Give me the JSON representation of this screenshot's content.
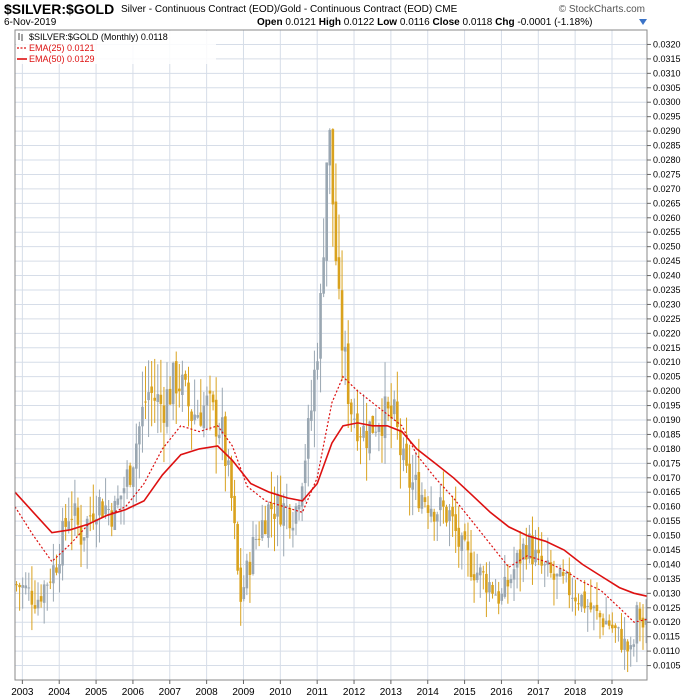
{
  "header": {
    "symbol": "$SILVER:$GOLD",
    "description": "Silver - Continuous Contract (EOD)/Gold - Continuous Contract (EOD)",
    "exchange": "CME",
    "brand": "© StockCharts.com",
    "date": "6-Nov-2019",
    "open_label": "Open",
    "open": "0.0121",
    "high_label": "High",
    "high": "0.0122",
    "low_label": "Low",
    "low": "0.0116",
    "close_label": "Close",
    "close": "0.0118",
    "chg_label": "Chg",
    "chg": "-0.0001 (-1.18%)"
  },
  "colors": {
    "up": "#9aa7b2",
    "down": "#d9a21e",
    "ema": "#dd1111",
    "grid": "#d6dde8",
    "frame": "#8a8a8a"
  },
  "chart_data": {
    "type": "candlestick",
    "title": "$SILVER:$GOLD",
    "ylim": [
      0.01,
      0.0325
    ],
    "y_ticks": [
      "0.0105",
      "0.0110",
      "0.0115",
      "0.0120",
      "0.0125",
      "0.0130",
      "0.0135",
      "0.0140",
      "0.0145",
      "0.0150",
      "0.0155",
      "0.0160",
      "0.0165",
      "0.0170",
      "0.0175",
      "0.0180",
      "0.0185",
      "0.0190",
      "0.0195",
      "0.0200",
      "0.0205",
      "0.0210",
      "0.0215",
      "0.0220",
      "0.0225",
      "0.0230",
      "0.0235",
      "0.0240",
      "0.0245",
      "0.0250",
      "0.0255",
      "0.0260",
      "0.0265",
      "0.0270",
      "0.0275",
      "0.0280",
      "0.0285",
      "0.0290",
      "0.0295",
      "0.0300",
      "0.0305",
      "0.0310",
      "0.0315",
      "0.0320"
    ],
    "x_range": [
      2002.8,
      2019.95
    ],
    "x_ticks": [
      "2003",
      "2004",
      "2005",
      "2006",
      "2007",
      "2008",
      "2009",
      "2010",
      "2011",
      "2012",
      "2013",
      "2014",
      "2015",
      "2016",
      "2017",
      "2018",
      "2019"
    ],
    "legend": [
      {
        "label": "$SILVER:$GOLD (Monthly) 0.0118",
        "style": "icon"
      },
      {
        "label": "EMA(25) 0.0121",
        "style": "dotted"
      },
      {
        "label": "EMA(50) 0.0129",
        "style": "solid"
      }
    ],
    "close_anchors": [
      [
        2002.9,
        0.0133
      ],
      [
        2003.4,
        0.0128
      ],
      [
        2003.9,
        0.014
      ],
      [
        2004.3,
        0.016
      ],
      [
        2004.6,
        0.015
      ],
      [
        2005.0,
        0.0162
      ],
      [
        2005.5,
        0.0158
      ],
      [
        2005.9,
        0.0172
      ],
      [
        2006.4,
        0.02
      ],
      [
        2006.8,
        0.0195
      ],
      [
        2007.2,
        0.0205
      ],
      [
        2007.6,
        0.0192
      ],
      [
        2008.0,
        0.0195
      ],
      [
        2008.4,
        0.0187
      ],
      [
        2008.7,
        0.016
      ],
      [
        2008.9,
        0.0127
      ],
      [
        2009.3,
        0.0148
      ],
      [
        2009.7,
        0.016
      ],
      [
        2010.0,
        0.016
      ],
      [
        2010.4,
        0.0158
      ],
      [
        2010.8,
        0.0188
      ],
      [
        2011.1,
        0.023
      ],
      [
        2011.3,
        0.0295
      ],
      [
        2011.6,
        0.0225
      ],
      [
        2011.9,
        0.0195
      ],
      [
        2012.3,
        0.0185
      ],
      [
        2012.7,
        0.0192
      ],
      [
        2013.1,
        0.019
      ],
      [
        2013.4,
        0.017
      ],
      [
        2013.8,
        0.0165
      ],
      [
        2014.2,
        0.016
      ],
      [
        2014.6,
        0.0157
      ],
      [
        2014.9,
        0.0145
      ],
      [
        2015.3,
        0.0138
      ],
      [
        2015.7,
        0.0133
      ],
      [
        2016.0,
        0.0128
      ],
      [
        2016.4,
        0.014
      ],
      [
        2016.7,
        0.0148
      ],
      [
        2017.0,
        0.014
      ],
      [
        2017.4,
        0.0135
      ],
      [
        2017.8,
        0.0132
      ],
      [
        2018.2,
        0.0128
      ],
      [
        2018.6,
        0.0122
      ],
      [
        2018.9,
        0.012
      ],
      [
        2019.3,
        0.0113
      ],
      [
        2019.55,
        0.0108
      ],
      [
        2019.7,
        0.0125
      ],
      [
        2019.85,
        0.0118
      ]
    ],
    "ema25_points": [
      [
        2002.8,
        0.016
      ],
      [
        2003.3,
        0.015
      ],
      [
        2003.8,
        0.0141
      ],
      [
        2004.3,
        0.0147
      ],
      [
        2004.8,
        0.0154
      ],
      [
        2005.3,
        0.0157
      ],
      [
        2005.8,
        0.016
      ],
      [
        2006.3,
        0.0168
      ],
      [
        2006.8,
        0.018
      ],
      [
        2007.3,
        0.0188
      ],
      [
        2007.8,
        0.0186
      ],
      [
        2008.3,
        0.0188
      ],
      [
        2008.7,
        0.0181
      ],
      [
        2009.1,
        0.0167
      ],
      [
        2009.6,
        0.0162
      ],
      [
        2010.1,
        0.016
      ],
      [
        2010.6,
        0.0158
      ],
      [
        2011.0,
        0.017
      ],
      [
        2011.4,
        0.0196
      ],
      [
        2011.7,
        0.0205
      ],
      [
        2012.1,
        0.02
      ],
      [
        2012.5,
        0.0196
      ],
      [
        2012.9,
        0.0192
      ],
      [
        2013.3,
        0.0188
      ],
      [
        2013.7,
        0.0178
      ],
      [
        2014.2,
        0.017
      ],
      [
        2014.7,
        0.0163
      ],
      [
        2015.2,
        0.0155
      ],
      [
        2015.7,
        0.0147
      ],
      [
        2016.2,
        0.0139
      ],
      [
        2016.7,
        0.0143
      ],
      [
        2017.2,
        0.0141
      ],
      [
        2017.7,
        0.0138
      ],
      [
        2018.2,
        0.0134
      ],
      [
        2018.7,
        0.0131
      ],
      [
        2019.2,
        0.0125
      ],
      [
        2019.6,
        0.012
      ],
      [
        2019.95,
        0.0121
      ]
    ],
    "ema50_points": [
      [
        2002.8,
        0.0165
      ],
      [
        2003.3,
        0.0158
      ],
      [
        2003.8,
        0.0151
      ],
      [
        2004.3,
        0.0152
      ],
      [
        2004.8,
        0.0154
      ],
      [
        2005.3,
        0.0157
      ],
      [
        2005.8,
        0.0159
      ],
      [
        2006.3,
        0.0162
      ],
      [
        2006.8,
        0.0171
      ],
      [
        2007.3,
        0.0178
      ],
      [
        2007.8,
        0.018
      ],
      [
        2008.3,
        0.0181
      ],
      [
        2008.7,
        0.0176
      ],
      [
        2009.2,
        0.0168
      ],
      [
        2009.7,
        0.0165
      ],
      [
        2010.2,
        0.0163
      ],
      [
        2010.6,
        0.0162
      ],
      [
        2011.0,
        0.0168
      ],
      [
        2011.4,
        0.0182
      ],
      [
        2011.7,
        0.0188
      ],
      [
        2012.1,
        0.0189
      ],
      [
        2012.5,
        0.0188
      ],
      [
        2012.9,
        0.0188
      ],
      [
        2013.3,
        0.0186
      ],
      [
        2013.7,
        0.018
      ],
      [
        2014.2,
        0.0175
      ],
      [
        2014.7,
        0.017
      ],
      [
        2015.2,
        0.0164
      ],
      [
        2015.7,
        0.0158
      ],
      [
        2016.2,
        0.0153
      ],
      [
        2016.7,
        0.015
      ],
      [
        2017.2,
        0.0148
      ],
      [
        2017.7,
        0.0145
      ],
      [
        2018.2,
        0.014
      ],
      [
        2018.7,
        0.0136
      ],
      [
        2019.2,
        0.0132
      ],
      [
        2019.6,
        0.013
      ],
      [
        2019.95,
        0.0129
      ]
    ]
  }
}
